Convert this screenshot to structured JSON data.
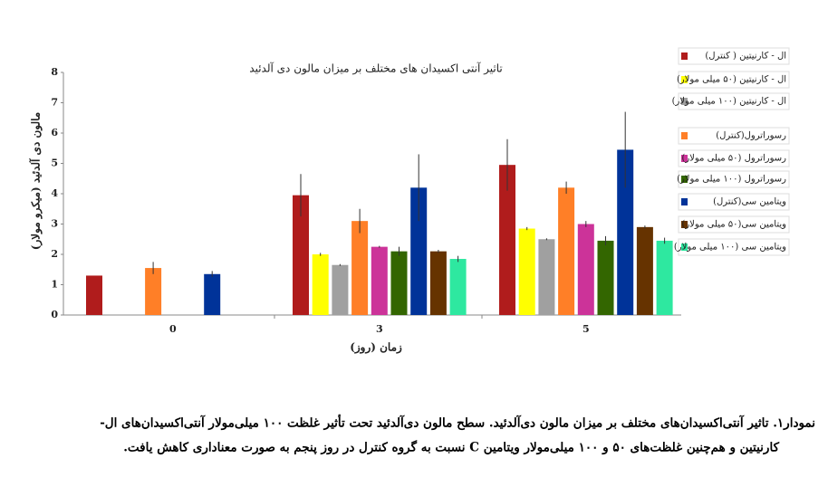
{
  "chart_data": {
    "type": "bar",
    "title": "تاثیر آنتی اکسیدان های مختلف بر میزان مالون دی آلدئید",
    "x_label": "زمان (روز)",
    "y_label": "مالون دی آلدئید (میکرو مولار)",
    "categories": [
      "0",
      "3",
      "5"
    ],
    "ylim": [
      0,
      8
    ],
    "yticks": [
      0,
      1,
      2,
      3,
      4,
      5,
      6,
      7,
      8
    ],
    "series": [
      {
        "name": "ال - کارنیتین ( کنترل)",
        "color": "#b01c1c",
        "values": [
          1.3,
          3.95,
          4.95
        ],
        "errors": [
          null,
          0.7,
          0.85
        ]
      },
      {
        "name": "ال - کارنیتین (۵۰ میلی مولار)",
        "color": "#ffff00",
        "values": [
          null,
          2.0,
          2.85
        ],
        "errors": [
          null,
          0.05,
          0.05
        ]
      },
      {
        "name": "ال - کارنیتین (۱۰۰ میلی مولار)",
        "color": "#a0a0a0",
        "values": [
          null,
          1.65,
          2.5
        ],
        "errors": [
          null,
          0.03,
          0.03
        ]
      },
      {
        "name": "رسوراترول(کنترل)",
        "color": "#ff7f27",
        "values": [
          1.55,
          3.1,
          4.2
        ],
        "errors": [
          0.2,
          0.4,
          0.2
        ]
      },
      {
        "name": "رسوراترول (۵۰ میلی مولار)",
        "color": "#cc3399",
        "values": [
          null,
          2.25,
          3.0
        ],
        "errors": [
          null,
          0.03,
          0.1
        ]
      },
      {
        "name": "رسوراترول (۱۰۰ میلی مولار)",
        "color": "#336600",
        "values": [
          null,
          2.1,
          2.45
        ],
        "errors": [
          null,
          0.15,
          0.15
        ]
      },
      {
        "name": "ویتامین سی(کنترل)",
        "color": "#003399",
        "values": [
          1.35,
          4.2,
          5.45
        ],
        "errors": [
          0.1,
          1.1,
          1.25
        ]
      },
      {
        "name": "ویتامین سی(۵۰ میلی مولار)",
        "color": "#663300",
        "values": [
          null,
          2.1,
          2.9
        ],
        "errors": [
          null,
          0.05,
          0.05
        ]
      },
      {
        "name": "ویتامین سی (۱۰۰ میلی مولار)",
        "color": "#2ee8a0",
        "values": [
          null,
          1.85,
          2.45
        ],
        "errors": [
          null,
          0.1,
          0.1
        ]
      }
    ]
  },
  "caption": [
    "نمودار۱. تاثیر آنتی‌اکسیدان‌های مختلف بر میزان مالون دی‌آلدئید. سطح مالون دی‌آلدئید تحت تأثیر غلظت ۱۰۰ میلی‌مولار آنتی‌اکسیدان‌های ال-",
    "کارنیتین و هم‌چنین غلظت‌های ۵۰ و ۱۰۰ میلی‌مولار ویتامین C نسبت به گروه کنترل در روز پنجم به صورت معناداری کاهش یافت."
  ]
}
